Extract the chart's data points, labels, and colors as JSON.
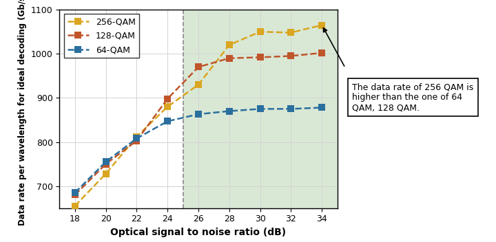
{
  "x_256": [
    18,
    20,
    22,
    24,
    26,
    28,
    30,
    32,
    34
  ],
  "y_256": [
    655,
    728,
    812,
    880,
    930,
    1020,
    1050,
    1048,
    1065
  ],
  "x_128": [
    18,
    20,
    22,
    24,
    26,
    28,
    30,
    32,
    34
  ],
  "y_128": [
    680,
    750,
    803,
    898,
    970,
    990,
    992,
    995,
    1002
  ],
  "x_64": [
    18,
    20,
    22,
    24,
    26,
    28,
    30,
    32,
    34
  ],
  "y_64": [
    685,
    755,
    808,
    847,
    863,
    870,
    875,
    875,
    878
  ],
  "color_256": "#DAA520",
  "color_128": "#C0552A",
  "color_64": "#2A6F9E",
  "xlabel": "Optical signal to noise ratio (dB)",
  "ylabel": "Data rate per wavelength for ideal decoding (Gb/s)",
  "xlim": [
    17,
    35
  ],
  "ylim": [
    650,
    1100
  ],
  "xticks": [
    18,
    20,
    22,
    24,
    26,
    28,
    30,
    32,
    34
  ],
  "yticks": [
    700,
    800,
    900,
    1000,
    1100
  ],
  "shade_start": 25,
  "shade_color": "#d9e8d5",
  "vline_x": 25,
  "annotation_text": "The data rate of 256 QAM is\nhigher than the one of 64\nQAM, 128 QAM."
}
